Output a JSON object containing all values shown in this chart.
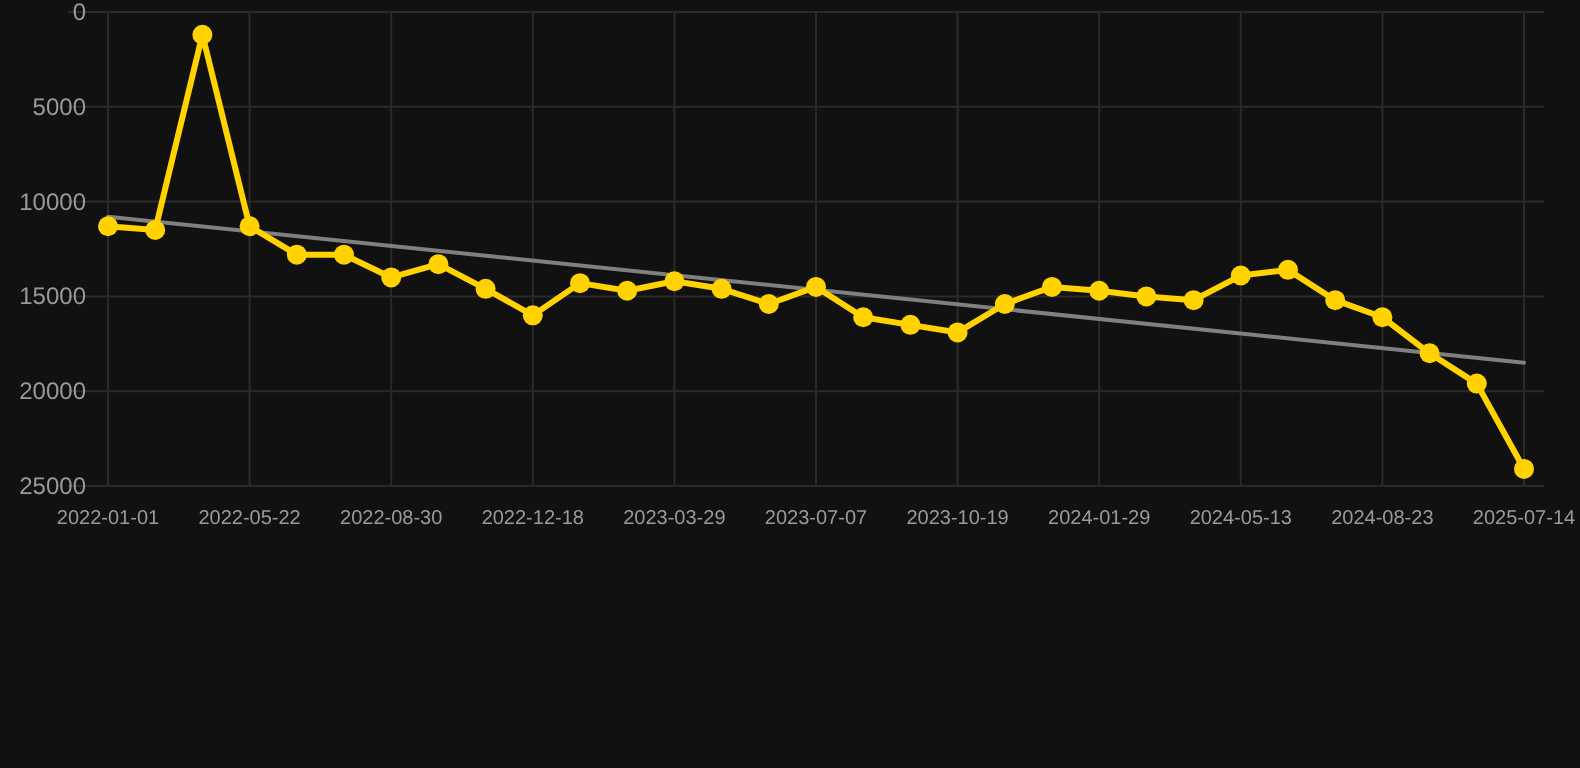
{
  "chart_data": {
    "type": "line",
    "categories": [
      "2022-01-01",
      null,
      null,
      "2022-05-22",
      null,
      null,
      "2022-08-30",
      null,
      null,
      "2022-12-18",
      null,
      null,
      "2023-03-29",
      null,
      null,
      "2023-07-07",
      null,
      null,
      "2023-10-19",
      null,
      null,
      "2024-01-29",
      null,
      null,
      "2024-05-13",
      null,
      null,
      "2024-08-23",
      null,
      null,
      "2025-07-14"
    ],
    "series": [
      {
        "color": "#ffd200",
        "marker": "circle",
        "values": [
          11300,
          11500,
          1200,
          11300,
          12800,
          12800,
          14000,
          13300,
          14600,
          16000,
          14300,
          14700,
          14200,
          14600,
          15400,
          14500,
          16100,
          16500,
          16900,
          15400,
          14500,
          14700,
          15000,
          15200,
          13900,
          13600,
          15200,
          16100,
          18000,
          19600,
          24100
        ]
      },
      {
        "type": "line",
        "color": "#808080",
        "marker": "none",
        "values": [
          10800,
          null,
          null,
          null,
          null,
          null,
          null,
          null,
          null,
          null,
          null,
          null,
          null,
          null,
          null,
          null,
          null,
          null,
          null,
          null,
          null,
          null,
          null,
          null,
          null,
          null,
          null,
          null,
          null,
          null,
          18500
        ]
      }
    ],
    "ylim": [
      25000,
      0
    ],
    "yticks": [
      0,
      5000,
      10000,
      15000,
      20000,
      25000
    ],
    "grid": true
  }
}
